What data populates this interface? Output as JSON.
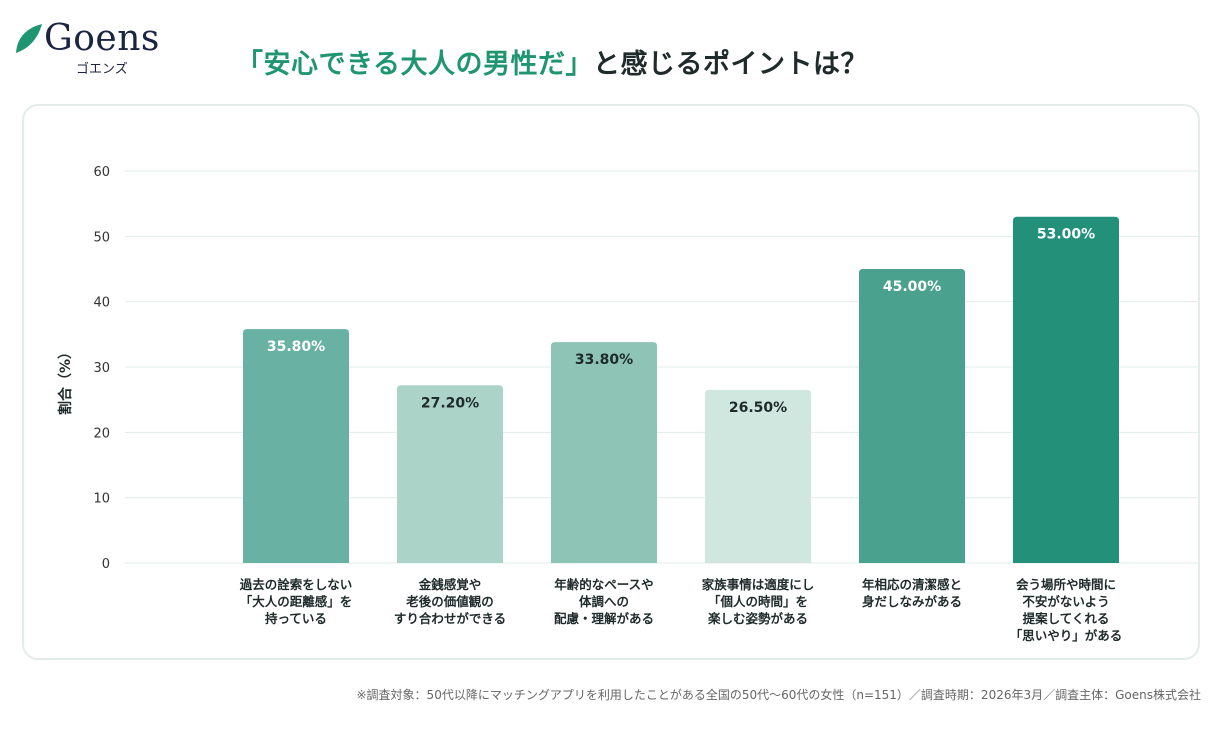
{
  "brand": {
    "name": "Goens",
    "kana": "ゴエンズ",
    "leaf_color": "#1f9670"
  },
  "title": {
    "highlight": "「安心できる大人の男性だ」",
    "rest": "と感じるポイントは？",
    "highlight_color": "#1f9670"
  },
  "chart_data": {
    "type": "bar",
    "title": "「安心できる大人の男性だ」と感じるポイントは？",
    "ylabel": "割合（%）",
    "xlabel": "",
    "ylim": [
      0,
      60
    ],
    "yticks": [
      0,
      10,
      20,
      30,
      40,
      50,
      60
    ],
    "grid": true,
    "categories": [
      [
        "過去の詮索をしない",
        "「大人の距離感」を",
        "持っている"
      ],
      [
        "金銭感覚や",
        "老後の価値観の",
        "すり合わせができる"
      ],
      [
        "年齢的なペースや",
        "体調への",
        "配慮・理解がある"
      ],
      [
        "家族事情は適度にし",
        "「個人の時間」を",
        "楽しむ姿勢がある"
      ],
      [
        "年相応の清潔感と",
        "身だしなみがある"
      ],
      [
        "会う場所や時間に",
        "不安がないよう",
        "提案してくれる",
        "「思いやり」がある"
      ]
    ],
    "values": [
      35.8,
      27.2,
      33.8,
      26.5,
      45.0,
      53.0
    ],
    "data_labels": [
      "35.80%",
      "27.20%",
      "33.80%",
      "26.50%",
      "45.00%",
      "53.00%"
    ],
    "colors": [
      "#68b1a3",
      "#acd3c7",
      "#8dc4b5",
      "#cfe7df",
      "#4aa18d",
      "#23907a"
    ],
    "label_colors": [
      "#ffffff",
      "#1f2a2a",
      "#1f2a2a",
      "#1f2a2a",
      "#ffffff",
      "#ffffff"
    ]
  },
  "footnote": "※調査対象：50代以降にマッチングアプリを利用したことがある全国の50代〜60代の女性（n=151）／調査時期：2026年3月／調査主体：Goens株式会社"
}
